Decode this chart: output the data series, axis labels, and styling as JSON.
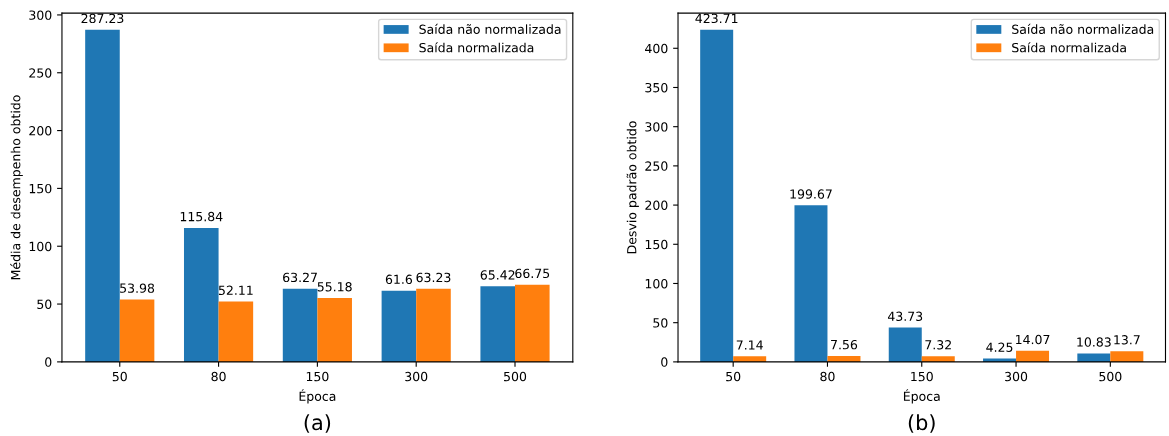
{
  "chart_data": [
    {
      "type": "bar",
      "xlabel": "Época",
      "ylabel": "Média de desempenho obtido",
      "categories": [
        "50",
        "80",
        "150",
        "300",
        "500"
      ],
      "series": [
        {
          "name": "Saída não normalizada",
          "color": "#1f77b4",
          "values": [
            287.23,
            115.84,
            63.27,
            61.6,
            65.42
          ]
        },
        {
          "name": "Saída normalizada",
          "color": "#ff7f0e",
          "values": [
            53.98,
            52.11,
            55.18,
            63.23,
            66.75
          ]
        }
      ],
      "ylim": [
        0,
        301.6
      ],
      "yticks": [
        0,
        50,
        100,
        150,
        200,
        250,
        300
      ],
      "data_labels": true,
      "legend": "top right",
      "grid": false,
      "annotations": [
        "(a)"
      ]
    },
    {
      "type": "bar",
      "xlabel": "Época",
      "ylabel": "Desvio padrão obtido",
      "categories": [
        "50",
        "80",
        "150",
        "300",
        "500"
      ],
      "series": [
        {
          "name": "Saída não normalizada",
          "color": "#1f77b4",
          "values": [
            423.71,
            199.67,
            43.73,
            4.25,
            10.83
          ]
        },
        {
          "name": "Saída normalizada",
          "color": "#ff7f0e",
          "values": [
            7.14,
            7.56,
            7.32,
            14.07,
            13.7
          ]
        }
      ],
      "ylim": [
        0,
        444.9
      ],
      "yticks": [
        0,
        50,
        100,
        150,
        200,
        250,
        300,
        350,
        400
      ],
      "data_labels": true,
      "legend": "top right",
      "grid": false,
      "annotations": [
        "(b)"
      ]
    }
  ]
}
